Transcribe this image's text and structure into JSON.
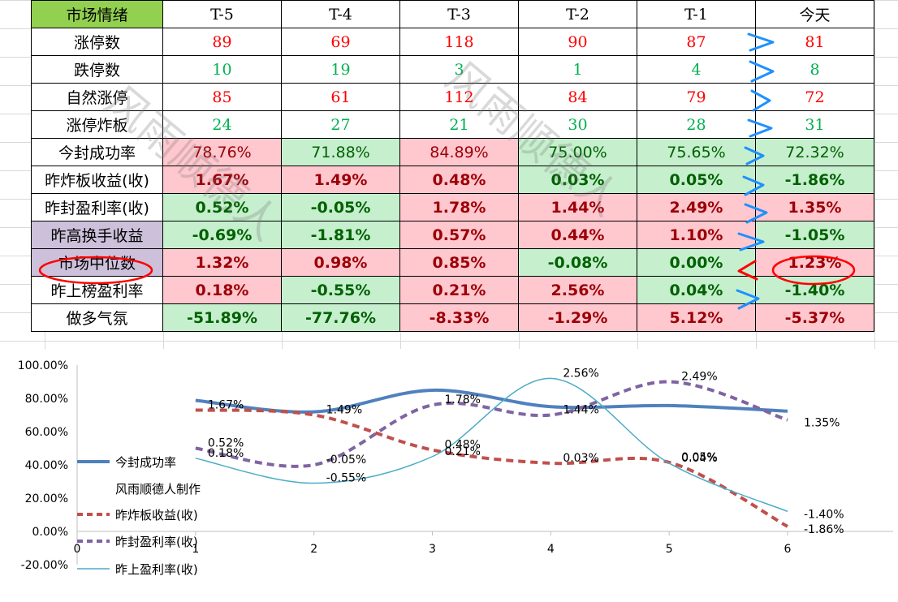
{
  "table": {
    "header": [
      "市场情绪",
      "T-5",
      "T-4",
      "T-3",
      "T-2",
      "T-1",
      "今天"
    ],
    "rows": [
      {
        "label": "涨停数",
        "kind": "int",
        "values": [
          "89",
          "69",
          "118",
          "90",
          "87",
          "81"
        ],
        "colors": [
          "red",
          "red",
          "red",
          "red",
          "red",
          "red"
        ]
      },
      {
        "label": "跌停数",
        "kind": "int",
        "values": [
          "10",
          "19",
          "3",
          "1",
          "4",
          "8"
        ],
        "colors": [
          "green",
          "green",
          "green",
          "green",
          "green",
          "green"
        ]
      },
      {
        "label": "自然涨停",
        "kind": "int",
        "values": [
          "85",
          "61",
          "112",
          "84",
          "79",
          "72"
        ],
        "colors": [
          "red",
          "red",
          "red",
          "red",
          "red",
          "red"
        ]
      },
      {
        "label": "涨停炸板",
        "kind": "int",
        "values": [
          "24",
          "27",
          "21",
          "30",
          "28",
          "31"
        ],
        "colors": [
          "green",
          "green",
          "green",
          "green",
          "green",
          "green"
        ]
      },
      {
        "label": "今封成功率",
        "kind": "pct",
        "bold": false,
        "values": [
          "78.76%",
          "71.88%",
          "84.89%",
          "75.00%",
          "75.65%",
          "72.32%"
        ],
        "fills": [
          "pink",
          "lg",
          "pink",
          "lg",
          "lg",
          "lg"
        ]
      },
      {
        "label": "昨炸板收益(收)",
        "kind": "pct",
        "bold": true,
        "values": [
          "1.67%",
          "1.49%",
          "0.48%",
          "0.03%",
          "0.05%",
          "-1.86%"
        ],
        "fills": [
          "pink",
          "pink",
          "pink",
          "lg",
          "lg",
          "lg"
        ]
      },
      {
        "label": "昨封盈利率(收)",
        "kind": "pct",
        "bold": true,
        "values": [
          "0.52%",
          "-0.05%",
          "1.78%",
          "1.44%",
          "2.49%",
          "1.35%"
        ],
        "fills": [
          "lg",
          "lg",
          "pink",
          "pink",
          "pink",
          "pink"
        ]
      },
      {
        "label": "昨高换手收益",
        "kind": "pct",
        "bold": true,
        "purple": true,
        "values": [
          "-0.69%",
          "-1.81%",
          "0.57%",
          "0.44%",
          "1.10%",
          "-1.05%"
        ],
        "fills": [
          "lg",
          "lg",
          "pink",
          "pink",
          "pink",
          "lg"
        ]
      },
      {
        "label": "市场中位数",
        "kind": "pct",
        "bold": true,
        "purple": true,
        "values": [
          "1.32%",
          "0.98%",
          "0.85%",
          "-0.08%",
          "0.00%",
          "1.23%"
        ],
        "fills": [
          "pink",
          "pink",
          "pink",
          "lg",
          "lg",
          "pink"
        ]
      },
      {
        "label": "昨上榜盈利率",
        "kind": "pct",
        "bold": true,
        "values": [
          "0.18%",
          "-0.55%",
          "0.21%",
          "2.56%",
          "0.04%",
          "-1.40%"
        ],
        "fills": [
          "pink",
          "lg",
          "pink",
          "pink",
          "lg",
          "lg"
        ]
      },
      {
        "label": "做多气氛",
        "kind": "pct",
        "bold": true,
        "values": [
          "-51.89%",
          "-77.76%",
          "-8.33%",
          "-1.29%",
          "5.12%",
          "-5.37%"
        ],
        "fills": [
          "lg",
          "lg",
          "pink",
          "pink",
          "pink",
          "pink"
        ]
      }
    ]
  },
  "watermark": "风雨顺德人",
  "colors": {
    "pink": "#ffc7ce",
    "lg": "#c6efce",
    "dred": "#9c0006",
    "dgreen": "#006100",
    "annotation_blue": "#1e90ff",
    "annotation_red": "#ff0000"
  },
  "chart_data": {
    "type": "line",
    "x": [
      1,
      2,
      3,
      4,
      5,
      6
    ],
    "xlim": [
      0,
      6
    ],
    "xticks": [
      "0",
      "1",
      "2",
      "3",
      "4",
      "5",
      "6"
    ],
    "ylim": [
      -20,
      100
    ],
    "yticks": [
      "100.00%",
      "80.00%",
      "60.00%",
      "40.00%",
      "20.00%",
      "0.00%",
      "-20.00%"
    ],
    "legend_note": "风雨顺德人制作",
    "series": [
      {
        "name": "今封成功率",
        "values": [
          78.76,
          71.88,
          84.89,
          75.0,
          75.65,
          72.32
        ],
        "color": "#4f81bd",
        "style": "solid-thick",
        "labels": []
      },
      {
        "name": "昨炸板收益(收)",
        "values": [
          73.0,
          70.0,
          49.0,
          41.0,
          41.5,
          3.0
        ],
        "color": "#c0504d",
        "style": "dash",
        "labels": [
          "1.67%",
          "1.49%",
          "0.48%",
          "0.03%",
          "0.05%",
          "-1.86%"
        ]
      },
      {
        "name": "昨封盈利率(收)",
        "values": [
          50.0,
          40.0,
          76.0,
          70.0,
          90.0,
          67.0
        ],
        "color": "#8064a2",
        "style": "dash",
        "labels": [
          "0.52%",
          "-0.05%",
          "1.78%",
          "1.44%",
          "2.49%",
          "1.35%"
        ]
      },
      {
        "name": "昨上盈利率(收)",
        "values": [
          44.0,
          29.0,
          45.0,
          92.0,
          41.0,
          12.0
        ],
        "color": "#4bacc6",
        "style": "thin",
        "labels": [
          "0.18%",
          "-0.55%",
          "0.21%",
          "2.56%",
          "0.04%",
          "-1.40%"
        ]
      }
    ]
  }
}
